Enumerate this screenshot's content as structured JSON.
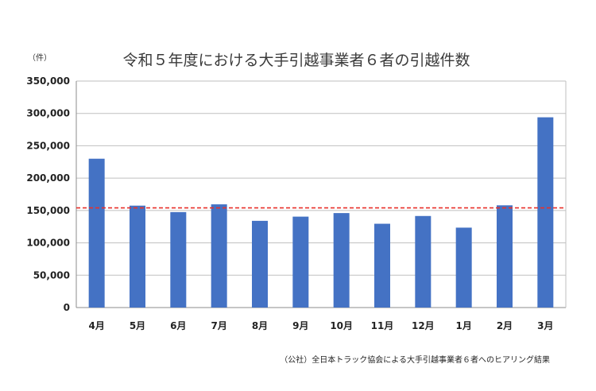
{
  "chart_data": {
    "type": "bar",
    "title": "令和５年度における大手引越事業者６者の引越件数",
    "unit_label": "（件）",
    "source_note": "（公社）全日本トラック協会による大手引越事業者６者へのヒアリング結果",
    "categories": [
      "4月",
      "5月",
      "6月",
      "7月",
      "8月",
      "9月",
      "10月",
      "11月",
      "12月",
      "1月",
      "2月",
      "3月"
    ],
    "values": [
      230000,
      157500,
      147500,
      159500,
      134000,
      140500,
      146000,
      129500,
      141500,
      123500,
      158000,
      294000
    ],
    "ylim": [
      0,
      350000
    ],
    "yticks": [
      0,
      50000,
      100000,
      150000,
      200000,
      250000,
      300000,
      350000
    ],
    "ytick_labels": [
      "0",
      "50,000",
      "100,000",
      "150,000",
      "200,000",
      "250,000",
      "300,000",
      "350,000"
    ],
    "reference_line": {
      "value": 154000,
      "style": "dashed",
      "color": "#e8302a"
    },
    "grid": true,
    "bar_color": "#4472c4",
    "gridline_color": "#bfbfbf"
  }
}
